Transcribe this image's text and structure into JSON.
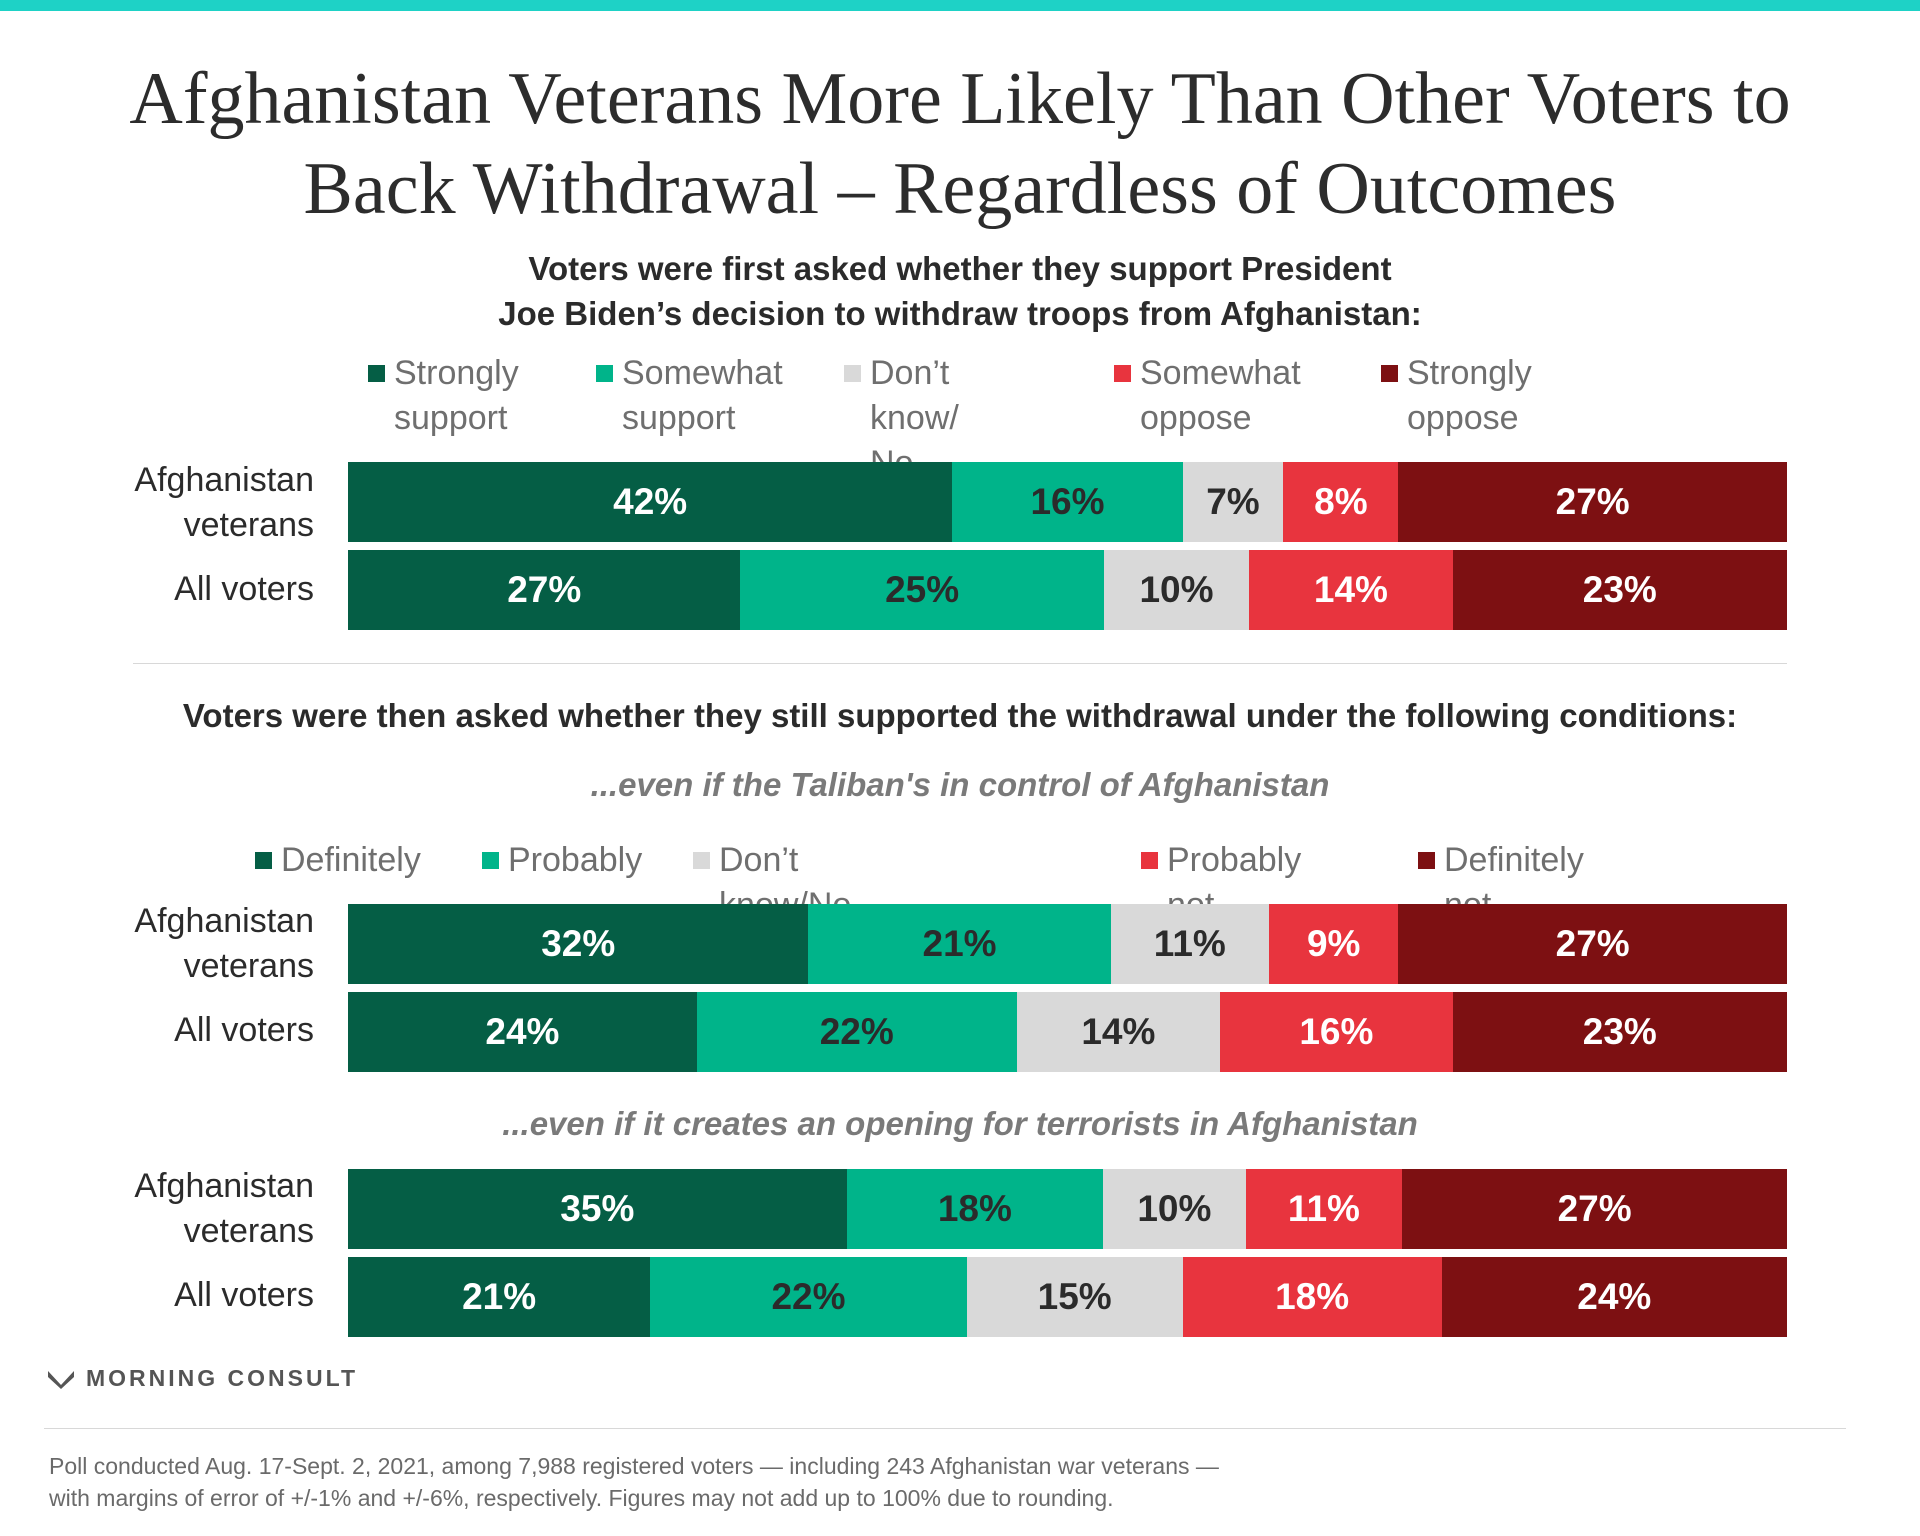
{
  "title": "Afghanistan Veterans More Likely Than Other Voters to Back Withdrawal – Regardless of Outcomes",
  "brand": "MORNING CONSULT",
  "footnote": "Poll conducted Aug. 17-Sept. 2, 2021, among 7,988 registered voters — including 243 Afghanistan war veterans —\nwith margins of error of +/-1% and +/-6%, respectively. Figures may not add up to 100% due to rounding.",
  "colors": {
    "strong_support": "#055e45",
    "support": "#00b48a",
    "neutral": "#d9d9d9",
    "oppose": "#e8343e",
    "strong_oppose": "#7d1012",
    "accent_bar": "#1ed2c6"
  },
  "chart_data": [
    {
      "type": "bar",
      "stacked": true,
      "orientation": "horizontal",
      "question": "Voters were first asked whether they support President\nJoe Biden’s decision to withdraw troops from Afghanistan:",
      "categories": [
        "Afghanistan\nveterans",
        "All voters"
      ],
      "series": [
        {
          "name": "Strongly\nsupport",
          "color": "#055e45",
          "values": [
            42,
            27
          ]
        },
        {
          "name": "Somewhat\nsupport",
          "color": "#00b48a",
          "values": [
            16,
            25
          ]
        },
        {
          "name": "Don’t know/\nNo opinion",
          "color": "#d9d9d9",
          "values": [
            7,
            10
          ]
        },
        {
          "name": "Somewhat\noppose",
          "color": "#e8343e",
          "values": [
            8,
            14
          ]
        },
        {
          "name": "Strongly\noppose",
          "color": "#7d1012",
          "values": [
            27,
            23
          ]
        }
      ],
      "value_suffix": "%"
    },
    {
      "type": "bar",
      "stacked": true,
      "orientation": "horizontal",
      "question": "Voters were then asked whether they still supported the withdrawal under the following conditions:",
      "subtitle": "...even if the Taliban's in control of Afghanistan",
      "categories": [
        "Afghanistan\nveterans",
        "All voters"
      ],
      "series": [
        {
          "name": "Definitely",
          "color": "#055e45",
          "values": [
            32,
            24
          ]
        },
        {
          "name": "Probably",
          "color": "#00b48a",
          "values": [
            21,
            22
          ]
        },
        {
          "name": "Don’t know/No opinion",
          "color": "#d9d9d9",
          "values": [
            11,
            14
          ]
        },
        {
          "name": "Probably not",
          "color": "#e8343e",
          "values": [
            9,
            16
          ]
        },
        {
          "name": "Definitely not",
          "color": "#7d1012",
          "values": [
            27,
            23
          ]
        }
      ],
      "value_suffix": "%"
    },
    {
      "type": "bar",
      "stacked": true,
      "orientation": "horizontal",
      "subtitle": "...even if it creates an opening for terrorists in Afghanistan",
      "categories": [
        "Afghanistan\nveterans",
        "All voters"
      ],
      "series": [
        {
          "name": "Definitely",
          "color": "#055e45",
          "values": [
            35,
            21
          ]
        },
        {
          "name": "Probably",
          "color": "#00b48a",
          "values": [
            18,
            22
          ]
        },
        {
          "name": "Don’t know/No opinion",
          "color": "#d9d9d9",
          "values": [
            10,
            15
          ]
        },
        {
          "name": "Probably not",
          "color": "#e8343e",
          "values": [
            11,
            18
          ]
        },
        {
          "name": "Definitely not",
          "color": "#7d1012",
          "values": [
            27,
            24
          ]
        }
      ],
      "value_suffix": "%"
    }
  ]
}
